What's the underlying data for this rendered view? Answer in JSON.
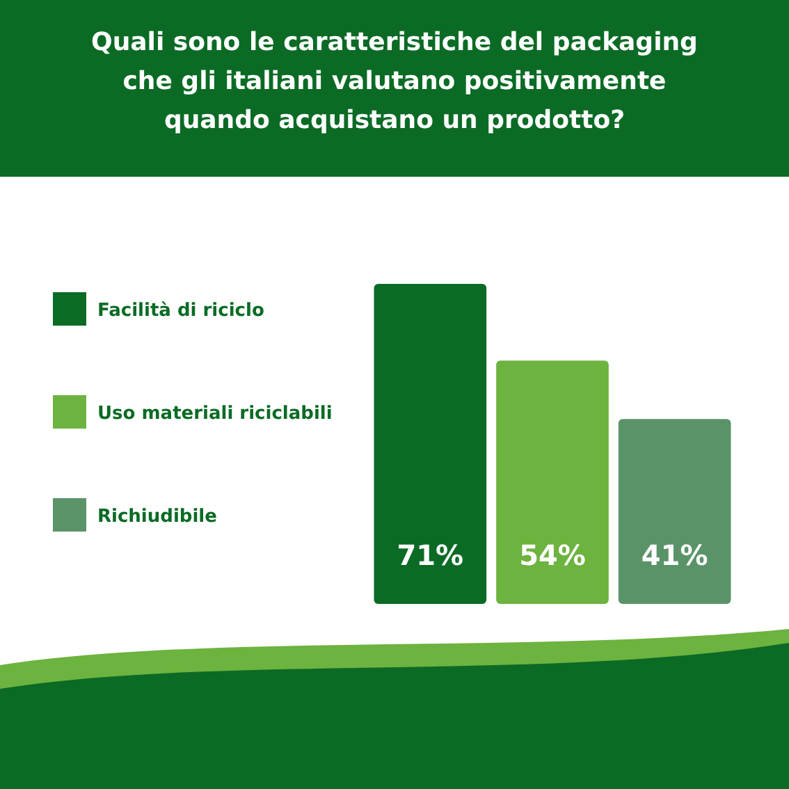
{
  "chart_data": {
    "type": "bar",
    "title": "Quali sono le caratteristiche del packaging che gli italiani valutano positivamente quando acquistano un prodotto?",
    "categories": [
      null
    ],
    "series": [
      {
        "name": "Facilità di riciclo",
        "color": "#0b6b25",
        "values": [
          71
        ],
        "value_labels": [
          "71%"
        ]
      },
      {
        "name": "Uso materiali riciclabili",
        "color": "#6db33f",
        "values": [
          54
        ],
        "value_labels": [
          "54%"
        ]
      },
      {
        "name": "Richiudibile",
        "color": "#5a9368",
        "values": [
          41
        ],
        "value_labels": [
          "41%"
        ]
      }
    ],
    "ylim": [
      0,
      71
    ],
    "tick_labels": false,
    "legend": "left",
    "grid": false
  }
}
